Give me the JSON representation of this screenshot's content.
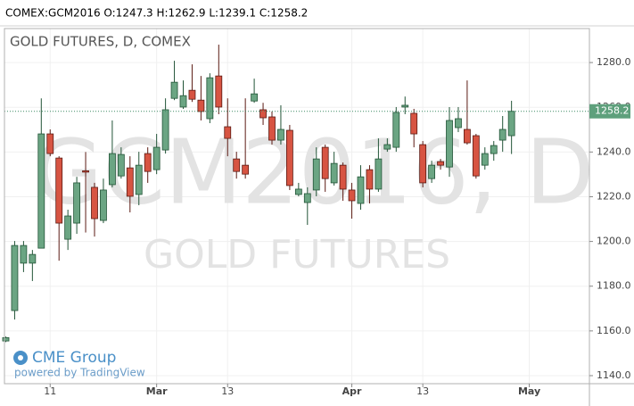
{
  "chart_data": {
    "type": "candlestick",
    "header": "COMEX:GCM2016 O:1247.3 H:1262.9 L:1239.1 C:1258.2",
    "title": "GOLD FUTURES, D, COMEX",
    "watermark": "GCM2016, D",
    "watermark_subtitle": "GOLD FUTURES",
    "logo": "CME Group",
    "logo_caption": "powered by TradingView",
    "up_color": "#6ba583",
    "down_color": "#d75442",
    "up_border": "#225437",
    "down_border": "#5b1a13",
    "grid": true,
    "categories": [
      null,
      null,
      null,
      null,
      null,
      "11",
      null,
      null,
      null,
      null,
      null,
      null,
      null,
      null,
      null,
      null,
      null,
      "Mar",
      null,
      null,
      null,
      null,
      null,
      null,
      null,
      "13",
      null,
      null,
      null,
      null,
      null,
      null,
      null,
      null,
      null,
      null,
      null,
      null,
      null,
      "Apr",
      null,
      null,
      null,
      null,
      null,
      null,
      null,
      "13",
      null,
      null,
      null,
      null,
      null,
      null,
      null,
      null,
      null,
      null,
      null,
      "May"
    ],
    "open": [
      1155.5,
      1169.1,
      1190.3,
      1190.3,
      1197,
      1248.1,
      1237.3,
      1201,
      1208.2,
      1231.6,
      1224.2,
      1209.4,
      1225.4,
      1229.3,
      1232.9,
      1221,
      1239.3,
      1232.1,
      1240.9,
      1264,
      1260.1,
      1267.6,
      1263.2,
      1254.9,
      1274,
      1251.3,
      1236.9,
      1234.1,
      1262.8,
      1258.9,
      1255.7,
      1245.3,
      1249.7,
      1221,
      1217.4,
      1223,
      1242.1,
      1226.2,
      1234.1,
      1223,
      1217,
      1232.1,
      1223.4,
      1241.3,
      1242.1,
      1260.1,
      1257.3,
      1243.3,
      1228.1,
      1235.7,
      1233.3,
      1250.9,
      1250.1,
      1247.3,
      1234.1,
      1239.3,
      1245.3,
      1247.3,
      null,
      null
    ],
    "high": [
      1157.5,
      1200.2,
      1200.2,
      1196.2,
      1264,
      1250.1,
      1238.1,
      1214.2,
      1228.9,
      1240,
      1226.2,
      1228.1,
      1254.1,
      1242.1,
      1238.1,
      1240.1,
      1242.1,
      1248.1,
      1264,
      1280.8,
      1272,
      1279.2,
      1274,
      1275.2,
      1288,
      1264,
      1240.1,
      1264,
      1272.8,
      1262,
      1258.1,
      1260.9,
      1252.1,
      1226.2,
      1224.2,
      1242.1,
      1243.3,
      1240.1,
      1235.3,
      1226.2,
      1234.1,
      1234.1,
      1246.1,
      1246.1,
      1260.1,
      1264.8,
      1259.3,
      1244.9,
      1236.1,
      1236.9,
      1260.1,
      1260.1,
      1272,
      1248.1,
      1242.1,
      1244.9,
      1256.1,
      1262.9,
      null,
      null
    ],
    "low": [
      1155,
      1165.1,
      1186.3,
      1182.3,
      1197,
      1238.1,
      1191.4,
      1196.2,
      1203.4,
      1204,
      1202.2,
      1208.2,
      1224.2,
      1228.1,
      1213,
      1216.2,
      1226.2,
      1230.1,
      1239.3,
      1263.2,
      1259.3,
      1262.4,
      1254.1,
      1252.9,
      1256.9,
      1238.1,
      1228.1,
      1228.1,
      1262,
      1252.1,
      1243.3,
      1243.3,
      1223,
      1220.2,
      1207.4,
      1220.2,
      1222.2,
      1225,
      1218.2,
      1210.2,
      1214.2,
      1217,
      1222.2,
      1240.1,
      1240.1,
      1256.9,
      1242.1,
      1224.2,
      1226.2,
      1232.1,
      1228.9,
      1248.9,
      1243.3,
      1228.1,
      1232.1,
      1236.1,
      1240.1,
      1239.1,
      null,
      null
    ],
    "close": [
      1157,
      1198.2,
      1198.2,
      1194.2,
      1248.1,
      1239.3,
      1208.2,
      1211.4,
      1226.2,
      1231,
      1210.2,
      1223,
      1239.3,
      1238.9,
      1220.2,
      1234.1,
      1231.3,
      1242.1,
      1258.9,
      1271.2,
      1265.2,
      1263.6,
      1258.1,
      1273.2,
      1260.1,
      1246.1,
      1231.3,
      1230.1,
      1266,
      1255.3,
      1245.3,
      1250.1,
      1225,
      1223.4,
      1221.4,
      1236.9,
      1228.1,
      1234.9,
      1223.4,
      1218.2,
      1228.9,
      1223.4,
      1236.9,
      1243.3,
      1257.7,
      1260.9,
      1248.1,
      1226.2,
      1234.1,
      1234.1,
      1254.1,
      1254.9,
      1244.1,
      1229.3,
      1239.3,
      1242.9,
      1250.1,
      1258.2,
      null,
      null
    ],
    "last_value": 1258.2,
    "ylim": [
      1136.4,
      1295.2
    ],
    "yticks": [
      {
        "value": 1140,
        "label": "1140.0"
      },
      {
        "value": 1160,
        "label": "1160.0"
      },
      {
        "value": 1180,
        "label": "1180.0"
      },
      {
        "value": 1200,
        "label": "1200.0"
      },
      {
        "value": 1220,
        "label": "1220.0"
      },
      {
        "value": 1240,
        "label": "1240.0"
      },
      {
        "value": 1260,
        "label": "1260.0"
      },
      {
        "value": 1280,
        "label": "1280.0"
      }
    ]
  }
}
